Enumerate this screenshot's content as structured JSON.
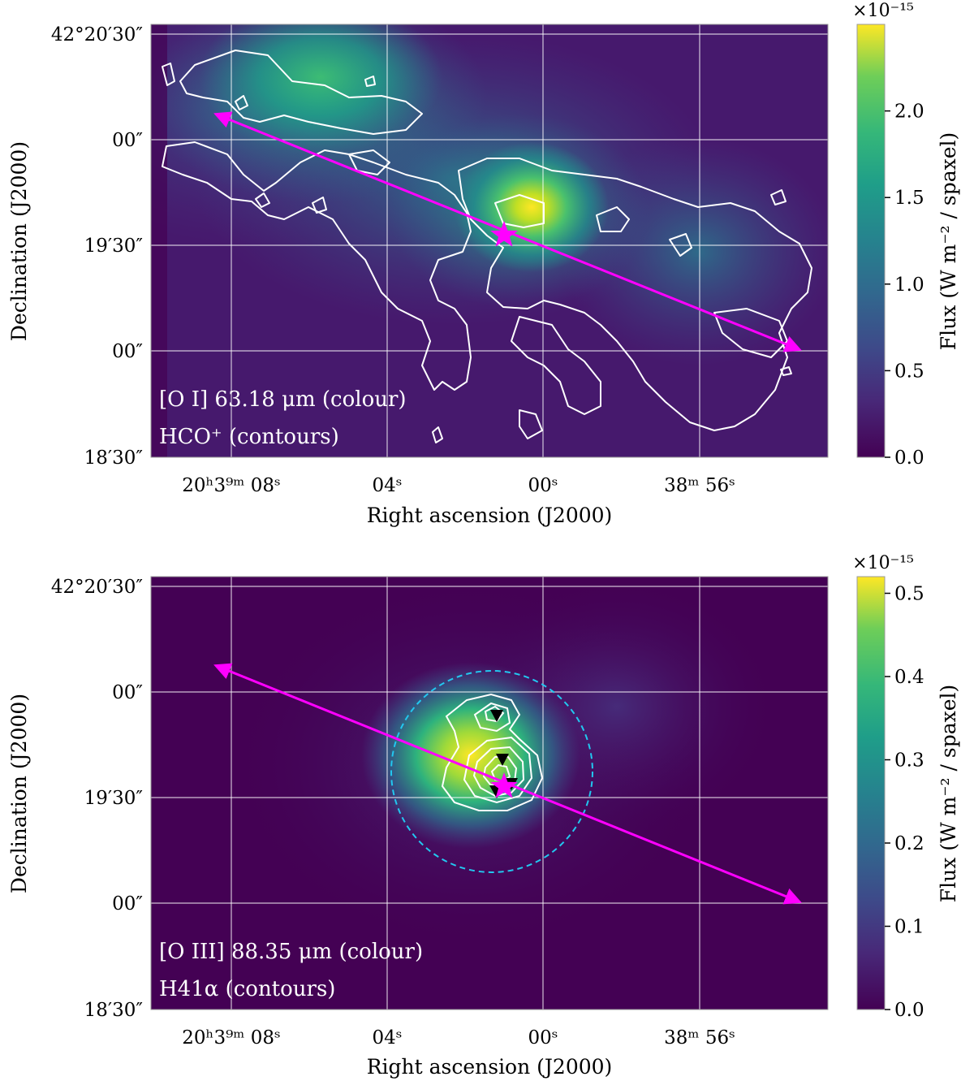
{
  "chart_data": [
    {
      "type": "heatmap",
      "xlabel": "Right ascension (J2000)",
      "ylabel": "Declination (J2000)",
      "colorbar_label": "Flux (W m⁻² / spaxel)",
      "colorbar_exponent": "×10⁻¹⁵",
      "colormap": "viridis",
      "x_ticks": [
        "20ʰ3⁹ᵐ 08ˢ",
        "04ˢ",
        "00ˢ",
        "38ᵐ 56ˢ"
      ],
      "y_ticks": [
        "42°20′30″",
        "00″",
        "19′30″",
        "00″",
        "18′30″"
      ],
      "colorbar_ticks": [
        0.0,
        0.5,
        1.0,
        1.5,
        2.0
      ],
      "colorbar_tick_labels": [
        "0.0",
        "0.5",
        "1.0",
        "1.5",
        "2.0"
      ],
      "colorbar_range": [
        0,
        2.5
      ],
      "grid": true,
      "annotation_lines": [
        "[O I] 63.18 μm (colour)",
        "HCO⁺ (contours)"
      ],
      "overlays": [
        "HCO+ contours (white)",
        "magenta star (peak)",
        "magenta double-headed arrow cut"
      ]
    },
    {
      "type": "heatmap",
      "xlabel": "Right ascension (J2000)",
      "ylabel": "Declination (J2000)",
      "colorbar_label": "Flux (W m⁻² / spaxel)",
      "colorbar_exponent": "×10⁻¹⁵",
      "colormap": "viridis",
      "x_ticks": [
        "20ʰ3⁹ᵐ 08ˢ",
        "04ˢ",
        "00ˢ",
        "38ᵐ 56ˢ"
      ],
      "y_ticks": [
        "42°20′30″",
        "00″",
        "19′30″",
        "00″",
        "18′30″"
      ],
      "colorbar_ticks": [
        0.0,
        0.1,
        0.2,
        0.3,
        0.4,
        0.5
      ],
      "colorbar_tick_labels": [
        "0.0",
        "0.1",
        "0.2",
        "0.3",
        "0.4",
        "0.5"
      ],
      "colorbar_range": [
        0,
        0.52
      ],
      "grid": true,
      "annotation_lines": [
        "[O III] 88.35 μm (colour)",
        "H41α (contours)"
      ],
      "overlays": [
        "H41α contours (white)",
        "cyan dashed circle",
        "black triangles (sources)",
        "magenta star",
        "magenta double-headed arrow cut"
      ]
    }
  ]
}
